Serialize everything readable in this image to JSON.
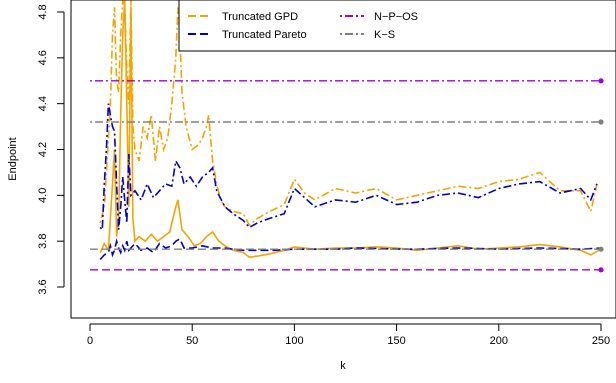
{
  "chart_data": {
    "type": "line",
    "xlabel": "k",
    "ylabel": "Endpoint",
    "xlim": [
      -6,
      255
    ],
    "ylim": [
      3.55,
      4.82
    ],
    "x_ticks": [
      0,
      50,
      100,
      150,
      200,
      250
    ],
    "y_ticks": [
      3.6,
      3.8,
      4.0,
      4.2,
      4.4,
      4.6,
      4.8
    ],
    "legend_position": "top-right",
    "legend": [
      {
        "label": "Truncated GPD",
        "color": "#F5A300",
        "dash": "longdash"
      },
      {
        "label": "Truncated Pareto",
        "color": "#0000CC",
        "dash": "longdash"
      },
      {
        "label": "N−P−OS",
        "color": "#A000E0",
        "dash": "dotdash"
      },
      {
        "label": "K−S",
        "color": "#808080",
        "dash": "dotdash"
      }
    ],
    "reference_lines": [
      {
        "name": "N-P-OS upper",
        "y": 4.5,
        "color": "#A000E0",
        "dash": "dotdash",
        "end_marker": true
      },
      {
        "name": "K-S upper",
        "y": 4.32,
        "color": "#808080",
        "dash": "dotdash",
        "end_marker": true
      },
      {
        "name": "N-P-OS lower",
        "y": 3.675,
        "color": "#A000E0",
        "dash": "longdash",
        "end_marker": true
      },
      {
        "name": "K-S lower",
        "y": 3.765,
        "color": "#808080",
        "dash": "longdash",
        "end_marker": true
      }
    ],
    "series": [
      {
        "color": "#F5A300",
        "style": "solid",
        "x": [
          5,
          7,
          9,
          11,
          12,
          13,
          14,
          15,
          16,
          17,
          18,
          19,
          20,
          21,
          22,
          24,
          27,
          30,
          33,
          36,
          39,
          42,
          43,
          45,
          48,
          51,
          54,
          57,
          60,
          63,
          66,
          70,
          75,
          78,
          82,
          88,
          95,
          100,
          105,
          110,
          120,
          130,
          140,
          150,
          160,
          170,
          180,
          190,
          200,
          210,
          220,
          230,
          240,
          245,
          250
        ],
        "y": [
          3.75,
          3.79,
          3.76,
          4.05,
          4.2,
          3.82,
          3.9,
          4.35,
          4.7,
          4.85,
          4.4,
          3.95,
          4.82,
          3.9,
          3.8,
          3.82,
          3.8,
          3.83,
          3.8,
          3.82,
          3.84,
          3.95,
          3.98,
          3.85,
          3.82,
          3.78,
          3.79,
          3.82,
          3.84,
          3.8,
          3.78,
          3.76,
          3.75,
          3.73,
          3.735,
          3.745,
          3.76,
          3.775,
          3.77,
          3.765,
          3.77,
          3.77,
          3.775,
          3.77,
          3.76,
          3.77,
          3.78,
          3.765,
          3.77,
          3.775,
          3.785,
          3.775,
          3.76,
          3.74,
          3.765
        ]
      },
      {
        "color": "#F5A300",
        "style": "dotdash",
        "x": [
          5,
          7,
          9,
          10,
          11,
          12,
          13,
          14,
          15,
          16,
          17,
          18,
          19,
          20,
          21,
          22,
          24,
          26,
          28,
          30,
          32,
          34,
          36,
          38,
          40,
          42,
          43,
          44,
          45,
          47,
          50,
          53,
          55,
          57,
          58,
          60,
          62,
          64,
          66,
          70,
          75,
          78,
          82,
          88,
          95,
          100,
          105,
          110,
          120,
          130,
          140,
          150,
          160,
          170,
          180,
          190,
          200,
          210,
          220,
          230,
          240,
          245,
          248
        ],
        "y": [
          3.88,
          3.95,
          4.25,
          4.4,
          4.7,
          4.82,
          4.5,
          4.45,
          4.7,
          4.85,
          4.82,
          4.55,
          4.4,
          4.85,
          4.3,
          4.2,
          4.15,
          4.3,
          4.25,
          4.35,
          4.15,
          4.3,
          4.2,
          4.25,
          4.4,
          4.6,
          4.82,
          4.7,
          4.45,
          4.3,
          4.2,
          4.22,
          4.25,
          4.3,
          4.35,
          4.15,
          4.05,
          3.98,
          3.95,
          3.93,
          3.92,
          3.87,
          3.9,
          3.93,
          3.96,
          4.07,
          4.01,
          3.98,
          4.03,
          4.01,
          4.03,
          3.98,
          4.0,
          4.02,
          4.04,
          4.03,
          4.06,
          4.07,
          4.1,
          4.02,
          4.02,
          3.93,
          4.05
        ]
      },
      {
        "color": "#0000CC",
        "style": "dotdash",
        "x": [
          5,
          6,
          7,
          8,
          9,
          10,
          11,
          12,
          13,
          14,
          15,
          16,
          17,
          18,
          19,
          20,
          22,
          25,
          28,
          31,
          34,
          37,
          40,
          42,
          44,
          46,
          49,
          52,
          55,
          58,
          60,
          62,
          66,
          70,
          75,
          78,
          82,
          88,
          95,
          100,
          105,
          110,
          120,
          130,
          140,
          150,
          160,
          170,
          180,
          190,
          200,
          210,
          220,
          230,
          240,
          245,
          248
        ],
        "y": [
          3.86,
          3.85,
          4.05,
          4.2,
          4.4,
          4.35,
          4.3,
          4.28,
          4.05,
          3.85,
          3.95,
          4.08,
          3.98,
          3.88,
          4.18,
          4.0,
          4.02,
          3.98,
          4.05,
          3.99,
          4.02,
          4.05,
          4.04,
          4.15,
          4.12,
          4.05,
          4.08,
          4.04,
          4.08,
          4.1,
          4.12,
          4.02,
          3.95,
          3.92,
          3.89,
          3.86,
          3.88,
          3.9,
          3.92,
          4.03,
          3.99,
          3.95,
          3.98,
          3.97,
          4.0,
          3.96,
          3.97,
          4.0,
          4.01,
          3.99,
          4.03,
          4.05,
          4.06,
          4.01,
          4.03,
          3.98,
          4.05
        ]
      },
      {
        "color": "#0000CC",
        "style": "longdash",
        "x": [
          5,
          7,
          9,
          10,
          11,
          12,
          13,
          14,
          15,
          16,
          17,
          18,
          19,
          20,
          22,
          25,
          28,
          31,
          34,
          37,
          40,
          42,
          44,
          46,
          50,
          55,
          60,
          66,
          70,
          75,
          80,
          90,
          100,
          110,
          120,
          130,
          140,
          150,
          160,
          170,
          180,
          190,
          200,
          210,
          220,
          230,
          240,
          250
        ],
        "y": [
          3.72,
          3.74,
          3.75,
          3.78,
          3.74,
          3.76,
          3.8,
          3.77,
          3.75,
          3.78,
          3.76,
          3.8,
          3.76,
          3.77,
          3.79,
          3.76,
          3.77,
          3.75,
          3.79,
          3.77,
          3.78,
          3.8,
          3.81,
          3.77,
          3.77,
          3.78,
          3.77,
          3.77,
          3.765,
          3.76,
          3.76,
          3.76,
          3.765,
          3.765,
          3.765,
          3.77,
          3.768,
          3.766,
          3.765,
          3.768,
          3.77,
          3.768,
          3.765,
          3.768,
          3.77,
          3.768,
          3.765,
          3.77
        ]
      }
    ]
  }
}
